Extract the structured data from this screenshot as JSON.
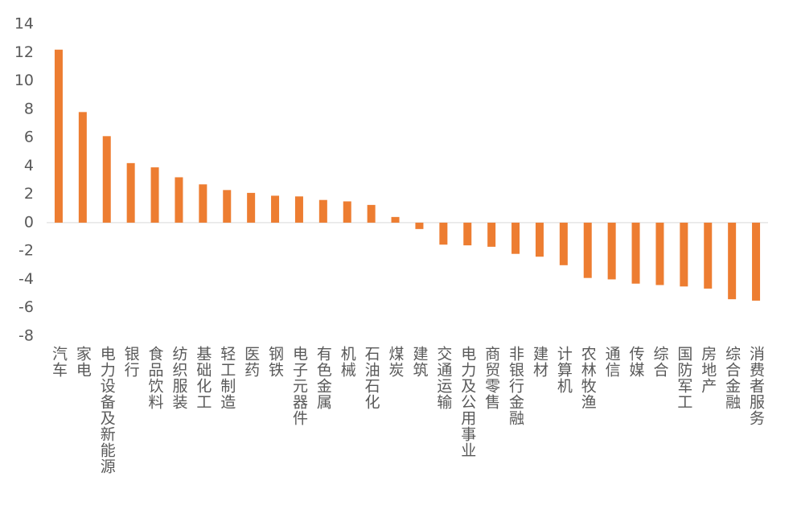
{
  "chart_data": {
    "type": "bar",
    "categories": [
      "汽车",
      "家电",
      "电力设备及新能源",
      "银行",
      "食品饮料",
      "纺织服装",
      "基础化工",
      "轻工制造",
      "医药",
      "钢铁",
      "电子元器件",
      "有色金属",
      "机械",
      "石油石化",
      "煤炭",
      "建筑",
      "交通运输",
      "电力及公用事业",
      "商贸零售",
      "非银行金融",
      "建材",
      "计算机",
      "农林牧渔",
      "通信",
      "传媒",
      "综合",
      "国防军工",
      "房地产",
      "综合金融",
      "消费者服务"
    ],
    "values": [
      12.2,
      7.8,
      6.1,
      4.2,
      3.9,
      3.2,
      2.7,
      2.3,
      2.1,
      1.9,
      1.85,
      1.6,
      1.5,
      1.25,
      0.4,
      -0.45,
      -1.55,
      -1.6,
      -1.7,
      -2.2,
      -2.4,
      -3.0,
      -3.9,
      -4.0,
      -4.3,
      -4.4,
      -4.5,
      -4.65,
      -5.4,
      -5.5
    ],
    "color": "#ED7D31",
    "ylim": [
      -8,
      14
    ],
    "yticks": [
      -8,
      -6,
      -4,
      -2,
      0,
      2,
      4,
      6,
      8,
      10,
      12,
      14
    ],
    "grid": false
  }
}
